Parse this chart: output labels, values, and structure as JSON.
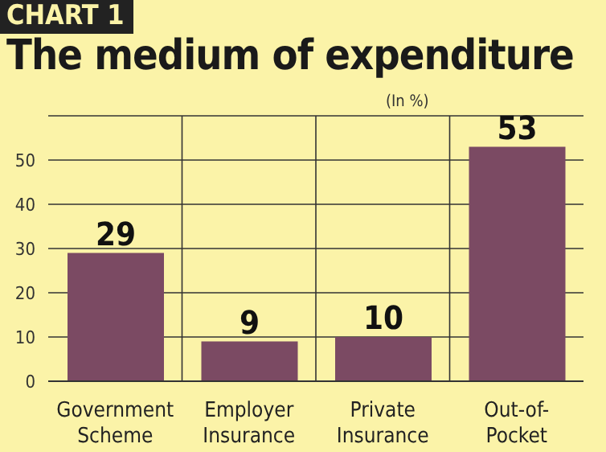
{
  "chart_data": {
    "type": "bar",
    "title": "The medium of expenditure",
    "annotations": [
      "CHART 1"
    ],
    "ylabel": "(In %)",
    "categories": [
      "Government Scheme",
      "Employer Insurance",
      "Private Insurance",
      "Out-of-Pocket"
    ],
    "values": [
      29,
      9,
      10,
      53
    ],
    "color": "#7b4a63",
    "ylim": [
      0,
      60
    ],
    "yticks": [
      0,
      10,
      20,
      30,
      40,
      50
    ],
    "grid": true,
    "data_labels": true
  }
}
